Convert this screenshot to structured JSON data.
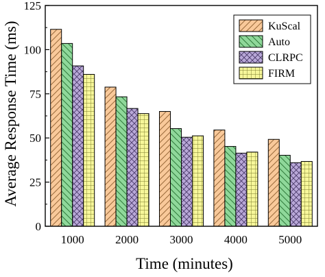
{
  "chart_data": {
    "type": "bar",
    "title": "",
    "xlabel": "Time (minutes)",
    "ylabel": "Average Response Time (ms)",
    "categories": [
      "1000",
      "2000",
      "3000",
      "4000",
      "5000"
    ],
    "ylim": [
      0,
      125
    ],
    "yticks": [
      "0",
      "25",
      "50",
      "75",
      "100",
      "125"
    ],
    "grid": false,
    "legend_position": "top-right",
    "series": [
      {
        "name": "KuScal",
        "values": [
          111.5,
          78.8,
          65.0,
          54.5,
          49.2
        ],
        "color": "#F9C99A",
        "pattern": "diagonal-forward"
      },
      {
        "name": "Auto",
        "values": [
          103.5,
          73.3,
          55.3,
          45.2,
          40.2
        ],
        "color": "#8FD89A",
        "pattern": "diagonal-back"
      },
      {
        "name": "CLRPC",
        "values": [
          90.8,
          66.7,
          50.4,
          41.4,
          36.0
        ],
        "color": "#B9A8D8",
        "pattern": "crosshatch-diagonal"
      },
      {
        "name": "FIRM",
        "values": [
          86.0,
          63.8,
          51.2,
          42.0,
          36.7
        ],
        "color": "#F7F79A",
        "pattern": "grid"
      }
    ]
  }
}
